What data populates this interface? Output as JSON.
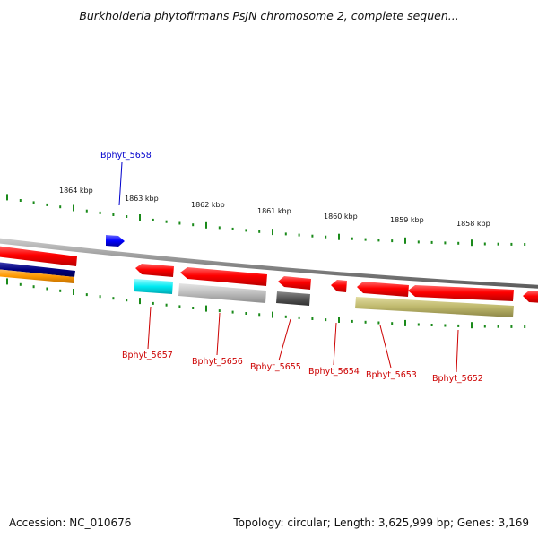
{
  "title": "Burkholderia phytofirmans PsJN chromosome 2, complete sequen...",
  "accession_text": "Accession: NC_010676",
  "summary_text": "Topology: circular; Length: 3,625,999 bp; Genes: 3,169",
  "scale": {
    "ticks": [
      "1864 kbp",
      "1863 kbp",
      "1862 kbp",
      "1861 kbp",
      "1860 kbp",
      "1859 kbp",
      "1858 kbp"
    ]
  },
  "genes": [
    {
      "name": "Bphyt_5658",
      "strand": "forward",
      "color": "#0000cc"
    },
    {
      "name": "Bphyt_5657",
      "strand": "reverse",
      "color": "#cc0000"
    },
    {
      "name": "Bphyt_5656",
      "strand": "reverse",
      "color": "#cc0000"
    },
    {
      "name": "Bphyt_5655",
      "strand": "reverse",
      "color": "#cc0000"
    },
    {
      "name": "Bphyt_5654",
      "strand": "reverse",
      "color": "#cc0000"
    },
    {
      "name": "Bphyt_5653",
      "strand": "reverse",
      "color": "#cc0000"
    },
    {
      "name": "Bphyt_5652",
      "strand": "reverse",
      "color": "#cc0000"
    }
  ],
  "colors": {
    "backbone": "#8a8a8a",
    "tick_mark": "#1a8a1a",
    "gene_fill": "#ff0000",
    "forward_gene": "#0000ff",
    "cyan_feature": "#00e5ee",
    "light_gray_feature": "#bdbdbd",
    "dark_gray_feature": "#555555",
    "olive_feature": "#bdb76b",
    "orange_feature": "#ff9900",
    "navy_feature": "#000080"
  }
}
